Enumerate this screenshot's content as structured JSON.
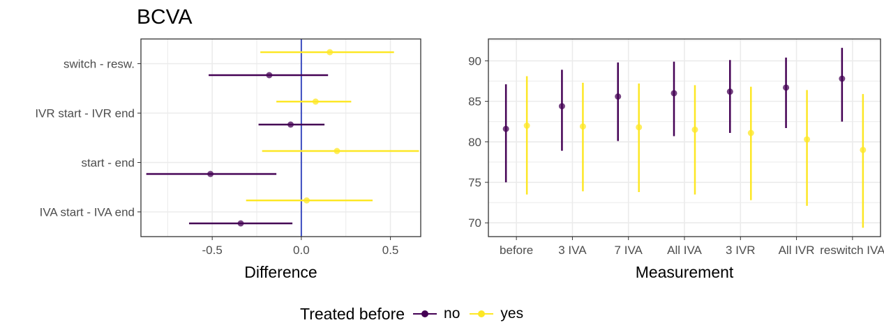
{
  "title": "BCVA",
  "colors": {
    "no": "#440154",
    "yes": "#fde725",
    "zero_line": "#3b4cc0",
    "grid": "#ebebeb",
    "panel_border": "#333333"
  },
  "legend": {
    "title": "Treated before",
    "items": [
      {
        "label": "no",
        "color": "#440154"
      },
      {
        "label": "yes",
        "color": "#fde725"
      }
    ]
  },
  "chart_data": [
    {
      "type": "scatter",
      "subtype": "pointrange-horizontal",
      "xlabel": "Difference",
      "ylabel": "",
      "xlim": [
        -0.9,
        0.67
      ],
      "xticks": [
        -0.5,
        0.0,
        0.5
      ],
      "xtick_labels": [
        "-0.5",
        "0.0",
        "0.5"
      ],
      "categories": [
        "IVA start - IVA end",
        "start - end",
        "IVR start - IVR end",
        "switch - resw."
      ],
      "series": [
        {
          "name": "no",
          "estimate": [
            -0.34,
            -0.51,
            -0.06,
            -0.18
          ],
          "lower": [
            -0.63,
            -0.87,
            -0.24,
            -0.52
          ],
          "upper": [
            -0.05,
            -0.14,
            0.13,
            0.15
          ]
        },
        {
          "name": "yes",
          "estimate": [
            0.03,
            0.2,
            0.08,
            0.16
          ],
          "lower": [
            -0.31,
            -0.22,
            -0.14,
            -0.23
          ],
          "upper": [
            0.4,
            0.66,
            0.28,
            0.52
          ]
        }
      ],
      "reference_line_x": 0,
      "grid": true
    },
    {
      "type": "scatter",
      "subtype": "pointrange-vertical",
      "xlabel": "Measurement",
      "ylabel": "",
      "ylim": [
        68.3,
        92.7
      ],
      "yticks": [
        70,
        75,
        80,
        85,
        90
      ],
      "categories": [
        "before",
        "3 IVA",
        "7 IVA",
        "All IVA",
        "3 IVR",
        "All IVR",
        "reswitch IVA"
      ],
      "series": [
        {
          "name": "no",
          "estimate": [
            81.6,
            84.4,
            85.6,
            86.0,
            86.2,
            86.7,
            87.8
          ],
          "lower": [
            75.0,
            78.9,
            80.1,
            80.7,
            81.1,
            81.7,
            82.5
          ],
          "upper": [
            87.1,
            88.9,
            89.8,
            89.9,
            90.1,
            90.4,
            91.6
          ]
        },
        {
          "name": "yes",
          "estimate": [
            82.0,
            81.9,
            81.8,
            81.5,
            81.1,
            80.3,
            79.0
          ],
          "lower": [
            73.5,
            73.9,
            73.8,
            73.5,
            72.8,
            72.1,
            69.4
          ],
          "upper": [
            88.1,
            87.3,
            87.2,
            87.0,
            86.8,
            86.4,
            85.9
          ]
        }
      ],
      "grid": true
    }
  ]
}
